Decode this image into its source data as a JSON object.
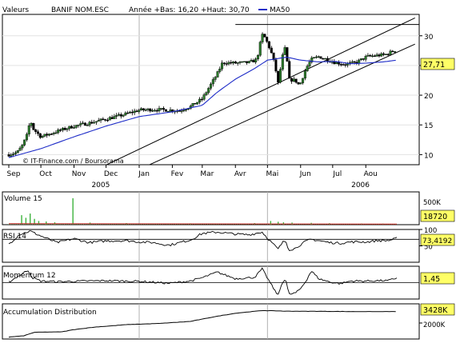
{
  "colors": {
    "background": "#ffffff",
    "candle_up": "#2a7a2a",
    "candle_down": "#000000",
    "ma50": "#1f2dc8",
    "volume": "#3db33d",
    "volume_avg": "#cc2a2a",
    "indicator_line": "#000000",
    "value_box": "#ffff66"
  },
  "chart_data": [
    {
      "type": "candlestick",
      "panel": "price",
      "header": {
        "valeurs": "Valeurs",
        "name": "BANIF NOM.ESC",
        "range_text": "Année +Bas: 16,20 +Haut: 30,70",
        "ma_label": "MA50"
      },
      "watermark": "© IT-Finance.com / Boursorama",
      "last_value_label": "27,71",
      "y_ticks": [
        "10",
        "15",
        "20",
        "25",
        "30"
      ],
      "ylim": [
        8.3,
        33.6
      ],
      "x_month_labels": [
        "Sep",
        "Oct",
        "Nov",
        "Dec",
        "Jan",
        "Fev",
        "Mar",
        "Avr",
        "Mai",
        "Jun",
        "Jul",
        "Aou"
      ],
      "x_month_start_days": [
        0,
        30,
        61,
        91,
        122,
        153,
        181,
        212,
        242,
        273,
        303,
        334
      ],
      "x_year_labels": [
        {
          "day": 86,
          "label": "2005"
        },
        {
          "day": 329,
          "label": "2006"
        }
      ],
      "x_day_range": [
        0,
        363
      ],
      "year_divider_days": [
        122,
        242
      ],
      "close_anchors": [
        [
          0,
          10
        ],
        [
          8,
          10.4
        ],
        [
          13,
          11.6
        ],
        [
          18,
          13.7
        ],
        [
          20,
          16.2
        ],
        [
          22,
          14.5
        ],
        [
          30,
          13
        ],
        [
          40,
          13.6
        ],
        [
          50,
          14.2
        ],
        [
          61,
          14.8
        ],
        [
          75,
          15.3
        ],
        [
          91,
          16
        ],
        [
          105,
          16.6
        ],
        [
          122,
          17.5
        ],
        [
          135,
          17.6
        ],
        [
          150,
          17.5
        ],
        [
          160,
          17.4
        ],
        [
          170,
          18.1
        ],
        [
          181,
          19.4
        ],
        [
          188,
          21.5
        ],
        [
          195,
          23.6
        ],
        [
          200,
          25.5
        ],
        [
          212,
          25.4
        ],
        [
          225,
          25.5
        ],
        [
          232,
          26
        ],
        [
          237,
          30.2
        ],
        [
          240,
          29.6
        ],
        [
          245,
          27.5
        ],
        [
          249,
          25
        ],
        [
          252,
          22
        ],
        [
          256,
          26.5
        ],
        [
          259,
          28.2
        ],
        [
          262,
          22.6
        ],
        [
          268,
          22.5
        ],
        [
          272,
          21.6
        ],
        [
          278,
          24.5
        ],
        [
          283,
          26
        ],
        [
          290,
          26.5
        ],
        [
          298,
          26
        ],
        [
          305,
          25.5
        ],
        [
          315,
          25.2
        ],
        [
          325,
          25.5
        ],
        [
          335,
          26.5
        ],
        [
          345,
          26.7
        ],
        [
          352,
          26.8
        ],
        [
          358,
          27.3
        ],
        [
          363,
          27.7
        ]
      ],
      "ma50_anchors": [
        [
          0,
          9.5
        ],
        [
          30,
          11
        ],
        [
          61,
          13
        ],
        [
          91,
          14.8
        ],
        [
          122,
          16.4
        ],
        [
          153,
          17.2
        ],
        [
          181,
          18.3
        ],
        [
          195,
          20.5
        ],
        [
          212,
          22.7
        ],
        [
          230,
          24.5
        ],
        [
          242,
          25.9
        ],
        [
          260,
          26.4
        ],
        [
          273,
          25.9
        ],
        [
          290,
          25.6
        ],
        [
          305,
          25.7
        ],
        [
          320,
          25.3
        ],
        [
          335,
          25.4
        ],
        [
          350,
          25.6
        ],
        [
          363,
          25.9
        ]
      ],
      "trendlines": [
        {
          "from": [
            88,
            8
          ],
          "to": [
            380,
            33
          ]
        },
        {
          "from": [
            128,
            8
          ],
          "to": [
            380,
            28.6
          ]
        }
      ],
      "horizontal_line": {
        "y": 31.9,
        "from_day": 212,
        "to_day": 363
      }
    },
    {
      "type": "bar",
      "panel": "volume",
      "label": "Volume 15",
      "axis_label": "500K",
      "value_label": "18720",
      "ylim": [
        0,
        620000
      ],
      "spikes": [
        [
          12,
          180000
        ],
        [
          16,
          130000
        ],
        [
          20,
          210000
        ],
        [
          24,
          110000
        ],
        [
          28,
          70000
        ],
        [
          35,
          60000
        ],
        [
          43,
          45000
        ],
        [
          60,
          500000
        ],
        [
          76,
          40000
        ],
        [
          110,
          30000
        ],
        [
          170,
          25000
        ],
        [
          230,
          30000
        ],
        [
          245,
          70000
        ],
        [
          252,
          55000
        ],
        [
          257,
          45000
        ],
        [
          265,
          40000
        ],
        [
          283,
          35000
        ],
        [
          300,
          28000
        ],
        [
          330,
          22000
        ],
        [
          350,
          20000
        ]
      ],
      "baseline_volume": 9000
    },
    {
      "type": "line",
      "panel": "rsi",
      "label": "RSI 14",
      "y_ticks": [
        "100",
        "50"
      ],
      "ylim": [
        0,
        100
      ],
      "reference_level": 70,
      "value_label": "73,4192",
      "anchors": [
        [
          0,
          55
        ],
        [
          10,
          85
        ],
        [
          20,
          95
        ],
        [
          30,
          80
        ],
        [
          45,
          60
        ],
        [
          61,
          72
        ],
        [
          75,
          60
        ],
        [
          91,
          65
        ],
        [
          110,
          66
        ],
        [
          122,
          62
        ],
        [
          135,
          60
        ],
        [
          150,
          52
        ],
        [
          170,
          68
        ],
        [
          181,
          88
        ],
        [
          195,
          92
        ],
        [
          212,
          86
        ],
        [
          225,
          84
        ],
        [
          237,
          92
        ],
        [
          243,
          70
        ],
        [
          249,
          50
        ],
        [
          252,
          40
        ],
        [
          256,
          60
        ],
        [
          259,
          66
        ],
        [
          262,
          38
        ],
        [
          268,
          42
        ],
        [
          272,
          52
        ],
        [
          278,
          64
        ],
        [
          283,
          70
        ],
        [
          290,
          66
        ],
        [
          300,
          60
        ],
        [
          310,
          58
        ],
        [
          320,
          62
        ],
        [
          335,
          62
        ],
        [
          345,
          66
        ],
        [
          355,
          66
        ],
        [
          363,
          73
        ]
      ]
    },
    {
      "type": "line",
      "panel": "momentum",
      "label": "Momentum 12",
      "value_label": "1,45",
      "ylim": [
        -5,
        5
      ],
      "reference_level": 0,
      "anchors": [
        [
          0,
          0.2
        ],
        [
          18,
          3.8
        ],
        [
          22,
          1.5
        ],
        [
          30,
          0.5
        ],
        [
          45,
          0.3
        ],
        [
          61,
          0.4
        ],
        [
          91,
          0.6
        ],
        [
          122,
          0.4
        ],
        [
          150,
          -0.2
        ],
        [
          170,
          0.5
        ],
        [
          181,
          1.5
        ],
        [
          195,
          3.2
        ],
        [
          212,
          1.2
        ],
        [
          230,
          1.6
        ],
        [
          237,
          4.2
        ],
        [
          243,
          0.8
        ],
        [
          249,
          -2.5
        ],
        [
          252,
          -3.8
        ],
        [
          256,
          0.2
        ],
        [
          259,
          1.2
        ],
        [
          262,
          -3.6
        ],
        [
          268,
          -3.2
        ],
        [
          272,
          -2.2
        ],
        [
          278,
          0.5
        ],
        [
          283,
          3.6
        ],
        [
          290,
          1.2
        ],
        [
          300,
          0.2
        ],
        [
          310,
          -0.3
        ],
        [
          320,
          0.5
        ],
        [
          335,
          0.5
        ],
        [
          345,
          0.6
        ],
        [
          355,
          0.6
        ],
        [
          363,
          1.45
        ]
      ]
    },
    {
      "type": "line",
      "panel": "accumulation_distribution",
      "label": "Accumulation Distribution",
      "value_label": "3428K",
      "axis_label": "2000K",
      "ylim": [
        0,
        4400
      ],
      "anchors": [
        [
          0,
          240
        ],
        [
          14,
          400
        ],
        [
          24,
          840
        ],
        [
          50,
          900
        ],
        [
          61,
          1180
        ],
        [
          80,
          1480
        ],
        [
          110,
          1800
        ],
        [
          140,
          1940
        ],
        [
          170,
          2200
        ],
        [
          195,
          2850
        ],
        [
          212,
          3220
        ],
        [
          237,
          3560
        ],
        [
          250,
          3520
        ],
        [
          260,
          3480
        ],
        [
          290,
          3460
        ],
        [
          330,
          3430
        ],
        [
          363,
          3428
        ]
      ]
    }
  ]
}
